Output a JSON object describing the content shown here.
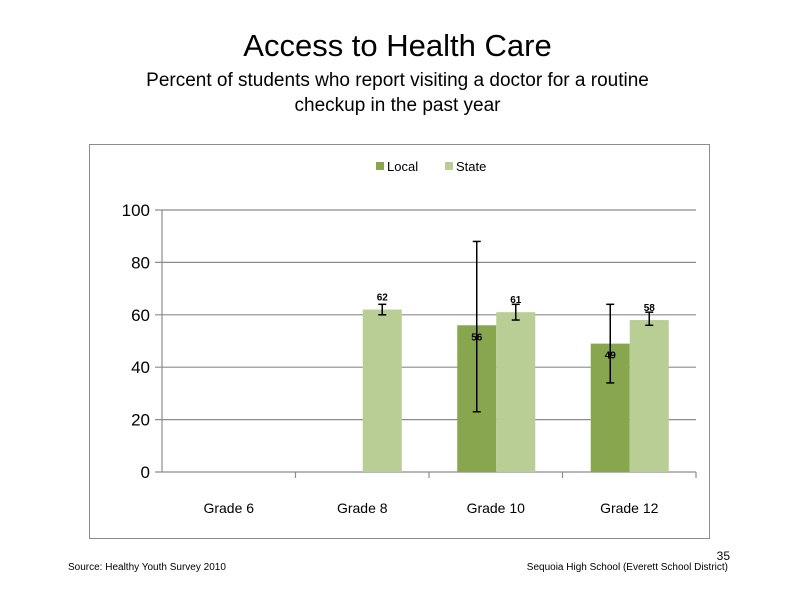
{
  "slide": {
    "title": "Access to Health Care",
    "subtitle_line1": "Percent of students who report visiting a doctor for a routine",
    "subtitle_line2": "checkup in the past year",
    "source": "Source: Healthy Youth Survey 2010",
    "school": "Sequoia High School (Everett School District)",
    "page_number": "35"
  },
  "chart_data": {
    "type": "bar",
    "categories": [
      "Grade 6",
      "Grade 8",
      "Grade 10",
      "Grade 12"
    ],
    "series": [
      {
        "name": "Local",
        "color": "#88a64e",
        "values": [
          null,
          null,
          56,
          49
        ],
        "labels": [
          "",
          "",
          "56",
          "49"
        ],
        "error_low": [
          null,
          null,
          23,
          34
        ],
        "error_high": [
          null,
          null,
          88,
          64
        ]
      },
      {
        "name": "State",
        "color": "#b9ce94",
        "values": [
          null,
          62,
          61,
          58
        ],
        "labels": [
          "",
          "62",
          "61",
          "58"
        ],
        "error_low": [
          null,
          60,
          58,
          56
        ],
        "error_high": [
          null,
          64,
          64,
          61
        ]
      }
    ],
    "yticks": [
      "0",
      "20",
      "40",
      "60",
      "80",
      "100"
    ],
    "ylim": [
      0,
      100
    ],
    "grid": true,
    "legend_position": "top"
  }
}
